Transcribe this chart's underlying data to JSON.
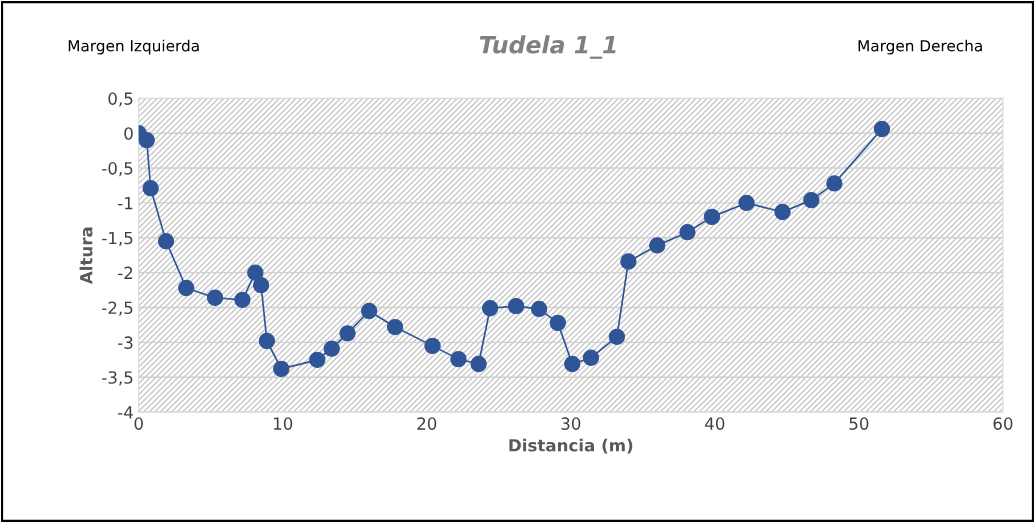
{
  "chart_data": {
    "type": "line",
    "title": "Tudela 1_1",
    "xlabel": "Distancia (m)",
    "ylabel": "Altura",
    "annotations": [
      "Margen Izquierda",
      "Margen Derecha"
    ],
    "x": [
      0,
      0.56,
      0.83,
      1.9,
      3.3,
      5.3,
      7.2,
      8.1,
      8.5,
      8.9,
      9.9,
      12.4,
      13.4,
      14.5,
      16.0,
      17.8,
      20.4,
      22.2,
      23.6,
      24.4,
      26.2,
      27.8,
      29.1,
      30.1,
      31.4,
      33.2,
      34.0,
      36.0,
      38.1,
      39.8,
      42.2,
      44.7,
      46.7,
      48.3,
      51.6
    ],
    "series": [
      {
        "color": "#2f5597",
        "values": [
          0,
          -0.1,
          -0.79,
          -1.55,
          -2.22,
          -2.36,
          -2.39,
          -2.0,
          -2.18,
          -2.98,
          -3.38,
          -3.25,
          -3.09,
          -2.87,
          -2.55,
          -2.78,
          -3.05,
          -3.24,
          -3.31,
          -2.51,
          -2.48,
          -2.52,
          -2.72,
          -3.31,
          -3.22,
          -2.92,
          -1.84,
          -1.61,
          -1.42,
          -1.2,
          -1.0,
          -1.13,
          -0.96,
          -0.72,
          0.06
        ]
      }
    ],
    "xlim": [
      0,
      60
    ],
    "xticks": [
      0,
      10,
      20,
      30,
      40,
      50,
      60
    ],
    "ylim": [
      -4,
      0.5
    ],
    "yticks": [
      {
        "value": 0.5,
        "label": "0,5"
      },
      0,
      {
        "value": -0.5,
        "label": "-0,5"
      },
      -1,
      {
        "value": -1.5,
        "label": "-1,5"
      },
      -2,
      {
        "value": -2.5,
        "label": "-2,5"
      },
      -3,
      {
        "value": -3.5,
        "label": "-3,5"
      },
      -4
    ],
    "grid": "y",
    "marker": "circle",
    "line_style": "solid",
    "legend": false
  }
}
